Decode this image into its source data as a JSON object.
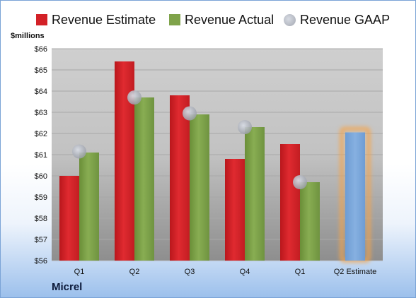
{
  "legend": {
    "estimate_label": "Revenue Estimate",
    "actual_label": "Revenue Actual",
    "gaap_label": "Revenue GAAP"
  },
  "unit_label": "$millions",
  "company": "Micrel",
  "colors": {
    "estimate": "#d32127",
    "actual": "#7fa34a",
    "gaap": "#b4b8c0",
    "forecast": "#7aa6d9",
    "forecast_glow": "#f6a44a"
  },
  "chart_data": {
    "type": "bar",
    "categories": [
      "Q1",
      "Q2",
      "Q3",
      "Q4",
      "Q1",
      "Q2 Estimate"
    ],
    "series": [
      {
        "name": "Revenue Estimate",
        "values": [
          60.0,
          65.4,
          63.8,
          60.8,
          61.5,
          null
        ]
      },
      {
        "name": "Revenue Actual",
        "values": [
          61.1,
          63.7,
          62.9,
          62.3,
          59.7,
          62.05
        ],
        "forecast_last": true
      },
      {
        "name": "Revenue GAAP",
        "type": "scatter",
        "values": [
          61.15,
          63.7,
          62.95,
          62.3,
          59.7,
          null
        ]
      }
    ],
    "ylim": [
      56,
      66
    ],
    "yticks": [
      "$56",
      "$57",
      "$58",
      "$59",
      "$60",
      "$61",
      "$62",
      "$63",
      "$64",
      "$65",
      "$66"
    ],
    "grid": true,
    "legend_position": "top"
  }
}
